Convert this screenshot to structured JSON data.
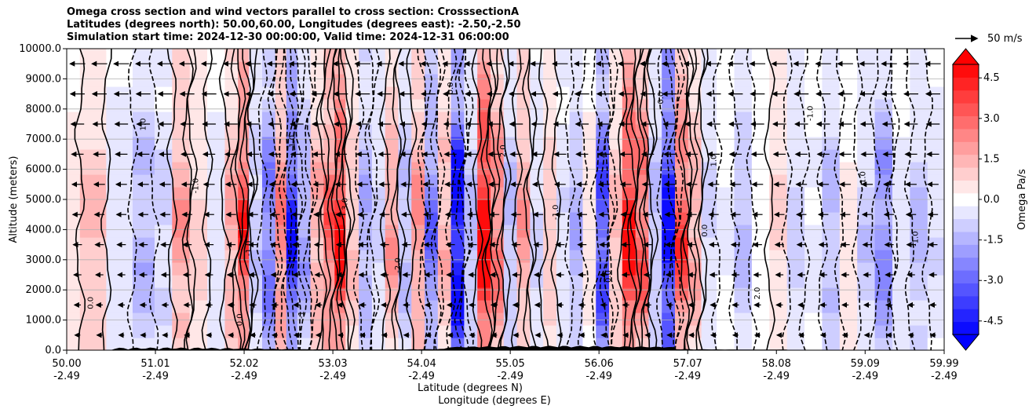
{
  "chart_data": {
    "type": "heatmap",
    "title_lines": [
      "Omega cross section and wind vectors parallel to cross section: CrosssectionA",
      "Latitudes (degrees north): 50.00,60.00, Longitudes (degrees east): -2.50,-2.50",
      "Simulation start time: 2024-12-30 00:00:00, Valid time: 2024-12-31 06:00:00"
    ],
    "ylabel": "Altitude (meters)",
    "xlabel_lines": [
      "Latitude (degrees N)",
      "Longitude (degrees E)"
    ],
    "ylim": [
      0,
      10000
    ],
    "yticks": [
      "0.0",
      "1000.0",
      "2000.0",
      "3000.0",
      "4000.0",
      "5000.0",
      "6000.0",
      "7000.0",
      "8000.0",
      "9000.0",
      "10000.0"
    ],
    "xlim": [
      50.0,
      59.99
    ],
    "xticks": [
      {
        "lat": "50.00",
        "lon": "-2.49",
        "value": 50.0
      },
      {
        "lat": "51.01",
        "lon": "-2.49",
        "value": 51.01
      },
      {
        "lat": "52.02",
        "lon": "-2.49",
        "value": 52.02
      },
      {
        "lat": "53.03",
        "lon": "-2.49",
        "value": 53.03
      },
      {
        "lat": "54.04",
        "lon": "-2.49",
        "value": 54.04
      },
      {
        "lat": "55.05",
        "lon": "-2.49",
        "value": 55.05
      },
      {
        "lat": "56.06",
        "lon": "-2.49",
        "value": 56.06
      },
      {
        "lat": "57.07",
        "lon": "-2.49",
        "value": 57.07
      },
      {
        "lat": "58.08",
        "lon": "-2.49",
        "value": 58.08
      },
      {
        "lat": "59.09",
        "lon": "-2.49",
        "value": 59.09
      },
      {
        "lat": "59.99",
        "lon": "-2.49",
        "value": 59.99
      }
    ],
    "colorbar": {
      "label": "Omega Pa/s",
      "range": [
        -5.0,
        5.0
      ],
      "ticks": [
        "-4.5",
        "-3.0",
        "-1.5",
        "0.0",
        "1.5",
        "3.0",
        "4.5"
      ],
      "levels": 21
    },
    "vector_key": {
      "label": "50 m/s"
    },
    "omega_columns": [
      {
        "lat": 50.0,
        "omega": 0.6
      },
      {
        "lat": 50.3,
        "omega": 1.2
      },
      {
        "lat": 50.6,
        "omega": -0.5
      },
      {
        "lat": 50.9,
        "omega": -1.4
      },
      {
        "lat": 51.1,
        "omega": -0.8
      },
      {
        "lat": 51.3,
        "omega": 1.8
      },
      {
        "lat": 51.5,
        "omega": 0.9
      },
      {
        "lat": 51.7,
        "omega": -0.6
      },
      {
        "lat": 51.9,
        "omega": 1.6
      },
      {
        "lat": 52.0,
        "omega": 3.6
      },
      {
        "lat": 52.15,
        "omega": -1.0
      },
      {
        "lat": 52.3,
        "omega": -2.6
      },
      {
        "lat": 52.45,
        "omega": 2.4
      },
      {
        "lat": 52.55,
        "omega": -4.0
      },
      {
        "lat": 52.7,
        "omega": -1.8
      },
      {
        "lat": 52.85,
        "omega": 1.6
      },
      {
        "lat": 53.0,
        "omega": 2.8
      },
      {
        "lat": 53.1,
        "omega": 4.2
      },
      {
        "lat": 53.25,
        "omega": 1.2
      },
      {
        "lat": 53.4,
        "omega": -1.6
      },
      {
        "lat": 53.55,
        "omega": -0.8
      },
      {
        "lat": 53.7,
        "omega": 1.8
      },
      {
        "lat": 53.85,
        "omega": -1.2
      },
      {
        "lat": 54.0,
        "omega": 2.0
      },
      {
        "lat": 54.15,
        "omega": -2.6
      },
      {
        "lat": 54.3,
        "omega": 1.4
      },
      {
        "lat": 54.45,
        "omega": -5.0
      },
      {
        "lat": 54.6,
        "omega": -1.2
      },
      {
        "lat": 54.75,
        "omega": 5.0
      },
      {
        "lat": 54.9,
        "omega": 2.6
      },
      {
        "lat": 55.05,
        "omega": -1.2
      },
      {
        "lat": 55.2,
        "omega": 1.8
      },
      {
        "lat": 55.35,
        "omega": -0.8
      },
      {
        "lat": 55.5,
        "omega": 1.0
      },
      {
        "lat": 55.65,
        "omega": -0.6
      },
      {
        "lat": 55.8,
        "omega": -1.4
      },
      {
        "lat": 55.95,
        "omega": 0.4
      },
      {
        "lat": 56.1,
        "omega": -3.6
      },
      {
        "lat": 56.25,
        "omega": 1.2
      },
      {
        "lat": 56.4,
        "omega": 4.4
      },
      {
        "lat": 56.55,
        "omega": 3.0
      },
      {
        "lat": 56.7,
        "omega": -1.2
      },
      {
        "lat": 56.85,
        "omega": -4.8
      },
      {
        "lat": 57.0,
        "omega": 3.2
      },
      {
        "lat": 57.15,
        "omega": 1.6
      },
      {
        "lat": 57.3,
        "omega": -0.8
      },
      {
        "lat": 57.5,
        "omega": -0.3
      },
      {
        "lat": 57.7,
        "omega": -1.2
      },
      {
        "lat": 57.9,
        "omega": 0.2
      },
      {
        "lat": 58.1,
        "omega": 0.8
      },
      {
        "lat": 58.3,
        "omega": -0.9
      },
      {
        "lat": 58.5,
        "omega": -0.3
      },
      {
        "lat": 58.7,
        "omega": -1.3
      },
      {
        "lat": 58.9,
        "omega": 0.4
      },
      {
        "lat": 59.1,
        "omega": -1.0
      },
      {
        "lat": 59.3,
        "omega": -2.2
      },
      {
        "lat": 59.5,
        "omega": -0.4
      },
      {
        "lat": 59.7,
        "omega": -1.2
      },
      {
        "lat": 59.9,
        "omega": -0.6
      }
    ],
    "contour_labels": [
      "0.0",
      "0.0",
      "1.0",
      "2.0",
      "3.0",
      "-1.0",
      "-2.0",
      "1.0",
      "0.0",
      "-1.0",
      "2.0",
      "0.0",
      "-1.0",
      "1.0",
      "0.0",
      "-1.0",
      "0.0",
      "-1.0",
      "1.0",
      "-1"
    ]
  }
}
